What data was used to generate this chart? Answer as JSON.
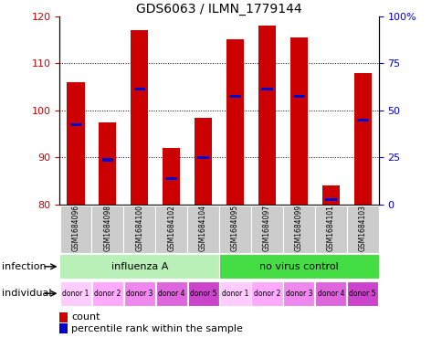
{
  "title": "GDS6063 / ILMN_1779144",
  "samples": [
    "GSM1684096",
    "GSM1684098",
    "GSM1684100",
    "GSM1684102",
    "GSM1684104",
    "GSM1684095",
    "GSM1684097",
    "GSM1684099",
    "GSM1684101",
    "GSM1684103"
  ],
  "count_values": [
    106,
    97.5,
    117,
    92,
    98.5,
    115,
    118,
    115.5,
    84,
    108
  ],
  "count_bottom": [
    80,
    80,
    80,
    80,
    80,
    80,
    80,
    80,
    80,
    80
  ],
  "percentile_values": [
    97,
    89.5,
    104.5,
    85.5,
    90,
    103,
    104.5,
    103,
    81,
    98
  ],
  "ylim": [
    80,
    120
  ],
  "y2lim": [
    0,
    100
  ],
  "yticks": [
    80,
    90,
    100,
    110,
    120
  ],
  "y2ticks": [
    0,
    25,
    50,
    75,
    100
  ],
  "y2ticklabels": [
    "0",
    "25",
    "50",
    "75",
    "100%"
  ],
  "bar_color": "#cc0000",
  "percentile_color": "#0000cc",
  "background_color": "#ffffff",
  "grid_lines": [
    90,
    100,
    110
  ],
  "infection_labels": [
    "influenza A",
    "no virus control"
  ],
  "infection_colors": [
    "#b8f0b8",
    "#44dd44"
  ],
  "individual_labels": [
    "donor 1",
    "donor 2",
    "donor 3",
    "donor 4",
    "donor 5",
    "donor 1",
    "donor 2",
    "donor 3",
    "donor 4",
    "donor 5"
  ],
  "individual_colors": [
    "#ffccff",
    "#ffaaff",
    "#ee88ee",
    "#dd66dd",
    "#cc44cc",
    "#ffccff",
    "#ffaaff",
    "#ee88ee",
    "#dd66dd",
    "#cc44cc"
  ],
  "label_infection": "infection",
  "label_individual": "individual",
  "legend_count": "count",
  "legend_percentile": "percentile rank within the sample",
  "tick_color_left": "#cc0000",
  "tick_color_right": "#0000cc",
  "bar_width": 0.55,
  "sample_bg": "#cccccc"
}
